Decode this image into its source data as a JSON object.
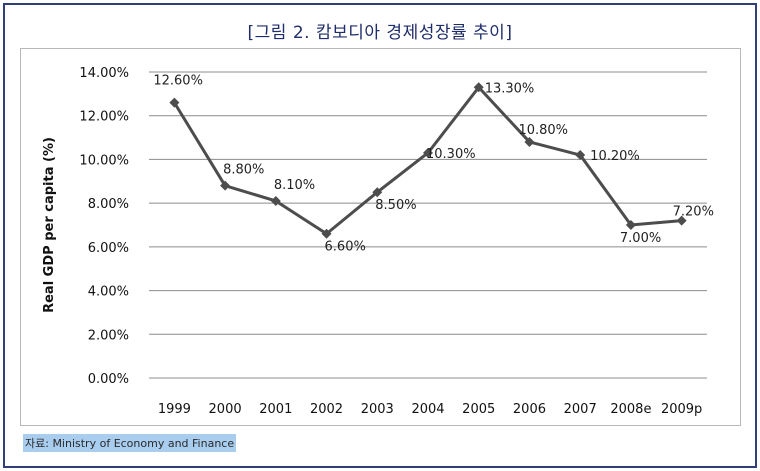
{
  "title": "[그림 2. 캄보디아 경제성장률 추이]",
  "source": "자료: Ministry of Economy and Finance",
  "chart_data": {
    "type": "line",
    "categories": [
      "1999",
      "2000",
      "2001",
      "2002",
      "2003",
      "2004",
      "2005",
      "2006",
      "2007",
      "2008e",
      "2009p"
    ],
    "series": [
      {
        "values": [
          12.6,
          8.8,
          8.1,
          6.6,
          8.5,
          10.3,
          13.3,
          10.8,
          10.2,
          7.0,
          7.2
        ],
        "labels": [
          "12.60%",
          "8.80%",
          "8.10%",
          "6.60%",
          "8.50%",
          "10.30%",
          "13.30%",
          "10.80%",
          "10.20%",
          "7.00%",
          "7.20%"
        ],
        "color": "#4d4d4d"
      }
    ],
    "ylabel": "Real GDP per capita (%)",
    "xlabel": "",
    "ylim": [
      0,
      14
    ],
    "yticks": [
      "0.00%",
      "2.00%",
      "4.00%",
      "6.00%",
      "8.00%",
      "10.00%",
      "12.00%",
      "14.00%"
    ],
    "grid": true,
    "gridColor": "#8c8c8c"
  }
}
